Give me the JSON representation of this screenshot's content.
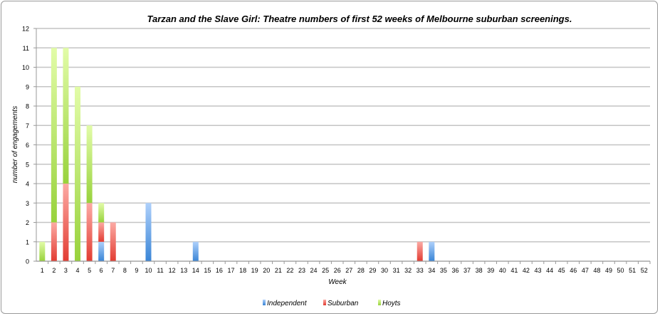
{
  "chart_data": {
    "type": "bar",
    "stacked": true,
    "title": "Tarzan and the Slave Girl: Theatre numbers of first 52 weeks of Melbourne suburban screenings.",
    "xlabel": "Week",
    "ylabel": "number of engagements",
    "ylim": [
      0,
      12
    ],
    "yticks": [
      0,
      1,
      2,
      3,
      4,
      5,
      6,
      7,
      8,
      9,
      10,
      11,
      12
    ],
    "grid": true,
    "legend_position": "bottom",
    "categories": [
      "1",
      "2",
      "3",
      "4",
      "5",
      "6",
      "7",
      "8",
      "9",
      "10",
      "11",
      "12",
      "13",
      "14",
      "15",
      "16",
      "17",
      "18",
      "19",
      "20",
      "21",
      "22",
      "23",
      "24",
      "25",
      "26",
      "27",
      "28",
      "29",
      "30",
      "31",
      "32",
      "33",
      "34",
      "35",
      "36",
      "37",
      "38",
      "39",
      "40",
      "41",
      "42",
      "43",
      "44",
      "45",
      "46",
      "47",
      "48",
      "49",
      "50",
      "51",
      "52"
    ],
    "series": [
      {
        "name": "Independent",
        "color": "#4a90d9",
        "values": [
          0,
          0,
          0,
          0,
          0,
          1,
          0,
          0,
          0,
          3,
          0,
          0,
          0,
          1,
          0,
          0,
          0,
          0,
          0,
          0,
          0,
          0,
          0,
          0,
          0,
          0,
          0,
          0,
          0,
          0,
          0,
          0,
          0,
          1,
          0,
          0,
          0,
          0,
          0,
          0,
          0,
          0,
          0,
          0,
          0,
          0,
          0,
          0,
          0,
          0,
          0,
          0
        ]
      },
      {
        "name": "Suburban",
        "color": "#e8443a",
        "values": [
          0,
          2,
          4,
          0,
          3,
          1,
          2,
          0,
          0,
          0,
          0,
          0,
          0,
          0,
          0,
          0,
          0,
          0,
          0,
          0,
          0,
          0,
          0,
          0,
          0,
          0,
          0,
          0,
          0,
          0,
          0,
          0,
          1,
          0,
          0,
          0,
          0,
          0,
          0,
          0,
          0,
          0,
          0,
          0,
          0,
          0,
          0,
          0,
          0,
          0,
          0,
          0
        ]
      },
      {
        "name": "Hoyts",
        "color": "#9ed63c",
        "values": [
          1,
          9,
          7,
          9,
          4,
          1,
          0,
          0,
          0,
          0,
          0,
          0,
          0,
          0,
          0,
          0,
          0,
          0,
          0,
          0,
          0,
          0,
          0,
          0,
          0,
          0,
          0,
          0,
          0,
          0,
          0,
          0,
          0,
          0,
          0,
          0,
          0,
          0,
          0,
          0,
          0,
          0,
          0,
          0,
          0,
          0,
          0,
          0,
          0,
          0,
          0,
          0
        ]
      }
    ]
  }
}
